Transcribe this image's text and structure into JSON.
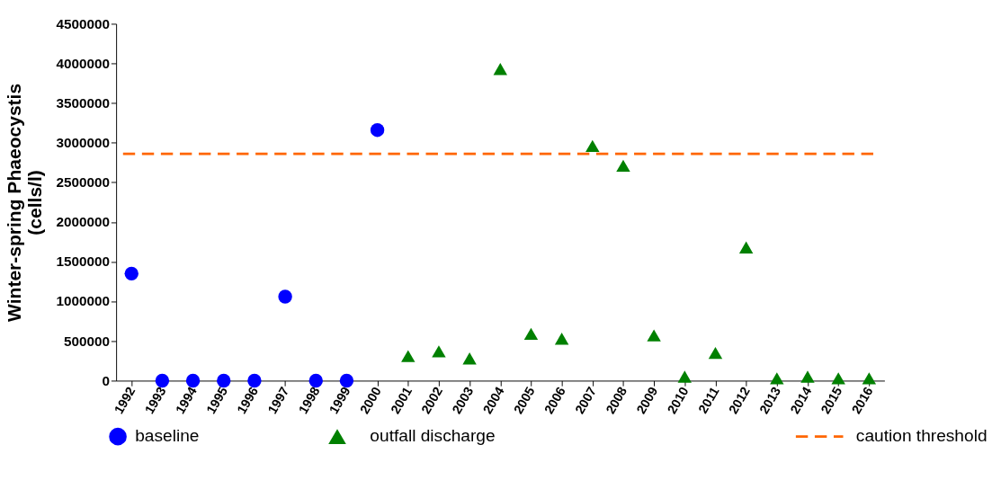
{
  "chart_data": {
    "type": "scatter",
    "ylabel": "Winter-spring Phaeocystis (cells/l)",
    "categories": [
      "1992",
      "1993",
      "1994",
      "1995",
      "1996",
      "1997",
      "1998",
      "1999",
      "2000",
      "2001",
      "2002",
      "2003",
      "2004",
      "2005",
      "2006",
      "2007",
      "2008",
      "2009",
      "2010",
      "2011",
      "2012",
      "2013",
      "2014",
      "2015",
      "2016"
    ],
    "series": [
      {
        "name": "baseline",
        "color": "#0000ff",
        "marker": "circle",
        "values": [
          1350000,
          0,
          0,
          0,
          0,
          1060000,
          0,
          0,
          3160000,
          null,
          null,
          null,
          null,
          null,
          null,
          null,
          null,
          null,
          null,
          null,
          null,
          null,
          null,
          null,
          null
        ]
      },
      {
        "name": "outfall discharge",
        "color": "#008000",
        "marker": "triangle",
        "values": [
          null,
          null,
          null,
          null,
          null,
          null,
          null,
          null,
          null,
          310000,
          370000,
          280000,
          3930000,
          590000,
          530000,
          2960000,
          2710000,
          570000,
          50000,
          350000,
          1680000,
          30000,
          50000,
          30000,
          30000
        ]
      }
    ],
    "ref_lines": [
      {
        "axis": "y",
        "value": 2860000,
        "label": "caution threshold",
        "color": "#ff6600",
        "line_style": "dashed"
      }
    ],
    "ylim": [
      0,
      4500000
    ],
    "yticks": [
      0,
      500000,
      1000000,
      1500000,
      2000000,
      2500000,
      3000000,
      3500000,
      4000000,
      4500000
    ],
    "grid": false,
    "legend": "bottom"
  }
}
